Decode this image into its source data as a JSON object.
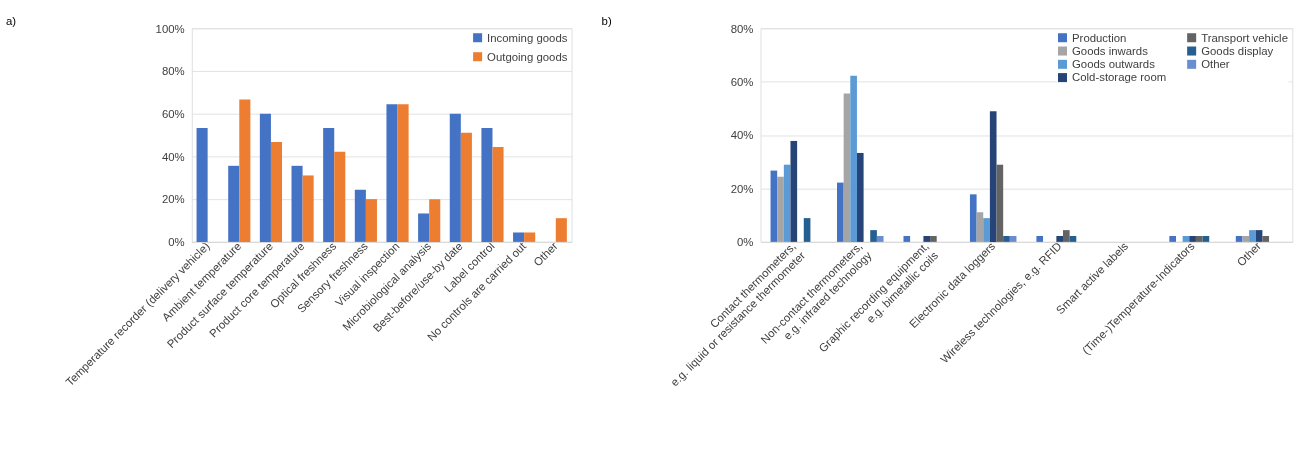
{
  "chart_data": [
    {
      "type": "bar",
      "title": "a)",
      "categories": [
        "Temperature recorder (delivery vehicle)",
        "Ambient temperature",
        "Product surface temperature",
        "Product core temperature",
        "Optical freshness",
        "Sensory freshness",
        "Visual inspection",
        "Microbiological analysis",
        "Best-before/use-by date",
        "Label control",
        "No controls are carried out",
        "Other"
      ],
      "series": [
        {
          "name": "Incoming goods",
          "color": "#4472c4",
          "values": [
            53.3,
            35.6,
            60,
            35.6,
            53.3,
            24.4,
            64.4,
            13.3,
            60,
            53.3,
            4.4,
            0
          ]
        },
        {
          "name": "Outgoing goods",
          "color": "#ed7d31",
          "values": [
            0,
            66.7,
            46.7,
            31.1,
            42.2,
            20,
            64.4,
            20,
            51.1,
            44.4,
            4.4,
            11.1
          ]
        }
      ],
      "ylim": [
        0,
        100
      ],
      "yticks": [
        {
          "value": 0,
          "label": "0%"
        },
        {
          "value": 20,
          "label": "20%"
        },
        {
          "value": 40,
          "label": "40%"
        },
        {
          "value": 60,
          "label": "60%"
        },
        {
          "value": 80,
          "label": "80%"
        },
        {
          "value": 100,
          "label": "100%"
        }
      ],
      "grid": "y",
      "legend": "top right"
    },
    {
      "type": "bar",
      "title": "b)",
      "categories": [
        "Contact thermometers,\ne.g. liquid or resistance thermometer",
        "Non-contact thermometers,\ne.g. infrared technology",
        "Graphic recording equipment,\ne.g. bimetallic coils",
        "Electronic data loggers",
        "Wireless technologies, e.g. RFID",
        "Smart active labels",
        "(Time-)Temperature-Indicators",
        "Other"
      ],
      "series": [
        {
          "name": "Production",
          "color": "#4472c4",
          "values": [
            26.7,
            22.2,
            2.2,
            17.8,
            2.2,
            0,
            2.2,
            2.2
          ]
        },
        {
          "name": "Goods inwards",
          "color": "#a5a5a5",
          "values": [
            24.4,
            55.6,
            0,
            11.1,
            0,
            0,
            0,
            2.2
          ]
        },
        {
          "name": "Goods outwards",
          "color": "#5b9bd5",
          "values": [
            28.9,
            62.2,
            0,
            8.9,
            0,
            0,
            2.2,
            4.4
          ]
        },
        {
          "name": "Cold-storage room",
          "color": "#264478",
          "values": [
            37.8,
            33.3,
            2.2,
            48.9,
            2.2,
            0,
            2.2,
            4.4
          ]
        },
        {
          "name": "Transport vehicle",
          "color": "#636363",
          "values": [
            0,
            0,
            2.2,
            28.9,
            4.4,
            0,
            2.2,
            2.2
          ]
        },
        {
          "name": "Goods display",
          "color": "#255e91",
          "values": [
            8.9,
            4.4,
            0,
            2.2,
            2.2,
            0,
            2.2,
            0
          ]
        },
        {
          "name": "Other",
          "color": "#698ed0",
          "values": [
            0,
            2.2,
            0,
            2.2,
            0,
            0,
            0,
            0
          ]
        }
      ],
      "ylim": [
        0,
        80
      ],
      "yticks": [
        {
          "value": 0,
          "label": "0%"
        },
        {
          "value": 20,
          "label": "20%"
        },
        {
          "value": 40,
          "label": "40%"
        },
        {
          "value": 60,
          "label": "60%"
        },
        {
          "value": 80,
          "label": "80%"
        }
      ],
      "grid": "y",
      "legend": "top right"
    }
  ]
}
